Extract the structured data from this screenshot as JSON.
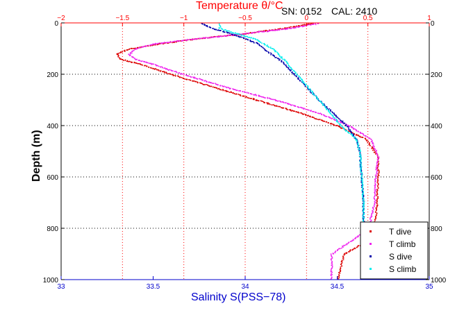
{
  "header": {
    "serial": "SN: 0152",
    "calibration": "CAL: 2410"
  },
  "chart_data": {
    "type": "scatter",
    "xlabel": "Salinity S(PSS−78)",
    "x2label": "Temperature θ/°C",
    "ylabel": "Depth (m)",
    "xlim": [
      33,
      35
    ],
    "x2lim": [
      -2,
      1
    ],
    "ylim": [
      1000,
      0
    ],
    "y_reversed": true,
    "grid": "dotted",
    "x_ticks": [
      "33",
      "33.5",
      "34",
      "34.5",
      "35"
    ],
    "x2_ticks": [
      "−2",
      "−1.5",
      "−1",
      "−0.5",
      "0",
      "0.5",
      "1"
    ],
    "y_ticks": [
      "0",
      "200",
      "400",
      "600",
      "800",
      "1000"
    ],
    "legend_position": "bottom-right",
    "colors": {
      "axis_bottom": "#0000cc",
      "axis_top": "#ff0000",
      "t_dive": "#dd0000",
      "t_climb": "#ee22ee",
      "s_dive": "#0000aa",
      "s_climb": "#00eeee"
    },
    "series": [
      {
        "name": "T dive",
        "axis": "temperature",
        "x": [
          0.05,
          -0.2,
          -0.5,
          -0.9,
          -1.2,
          -1.45,
          -1.55,
          -1.52,
          -1.35,
          -1.1,
          -0.75,
          -0.4,
          -0.05,
          0.25,
          0.48,
          0.58,
          0.58,
          0.57,
          0.55,
          0.48,
          0.3,
          0.25
        ],
        "y": [
          0,
          20,
          40,
          60,
          80,
          100,
          120,
          140,
          160,
          200,
          250,
          300,
          350,
          400,
          450,
          520,
          600,
          700,
          800,
          850,
          900,
          1000
        ]
      },
      {
        "name": "T climb",
        "axis": "temperature",
        "x": [
          0.1,
          -0.15,
          -0.5,
          -0.9,
          -1.25,
          -1.4,
          -1.45,
          -1.4,
          -1.25,
          -1.0,
          -0.65,
          -0.25,
          0.1,
          0.35,
          0.52,
          0.58,
          0.56,
          0.55,
          0.5,
          0.35,
          0.2,
          0.2
        ],
        "y": [
          0,
          20,
          40,
          60,
          80,
          100,
          120,
          140,
          160,
          200,
          250,
          300,
          350,
          400,
          450,
          520,
          600,
          700,
          800,
          850,
          900,
          1000
        ]
      },
      {
        "name": "S dive",
        "axis": "salinity",
        "x": [
          33.76,
          33.82,
          33.92,
          34.0,
          34.07,
          34.1,
          34.2,
          34.4,
          34.55,
          34.6,
          34.62,
          34.63,
          34.64,
          34.64
        ],
        "y": [
          0,
          20,
          40,
          60,
          80,
          100,
          150,
          300,
          400,
          450,
          500,
          600,
          700,
          800
        ]
      },
      {
        "name": "S climb",
        "axis": "salinity",
        "x": [
          33.86,
          33.86,
          33.95,
          34.05,
          34.15,
          34.22,
          34.4,
          34.52,
          34.6,
          34.62,
          34.63,
          34.64,
          34.64
        ],
        "y": [
          0,
          20,
          40,
          60,
          100,
          150,
          300,
          400,
          450,
          500,
          600,
          700,
          800
        ]
      }
    ]
  }
}
